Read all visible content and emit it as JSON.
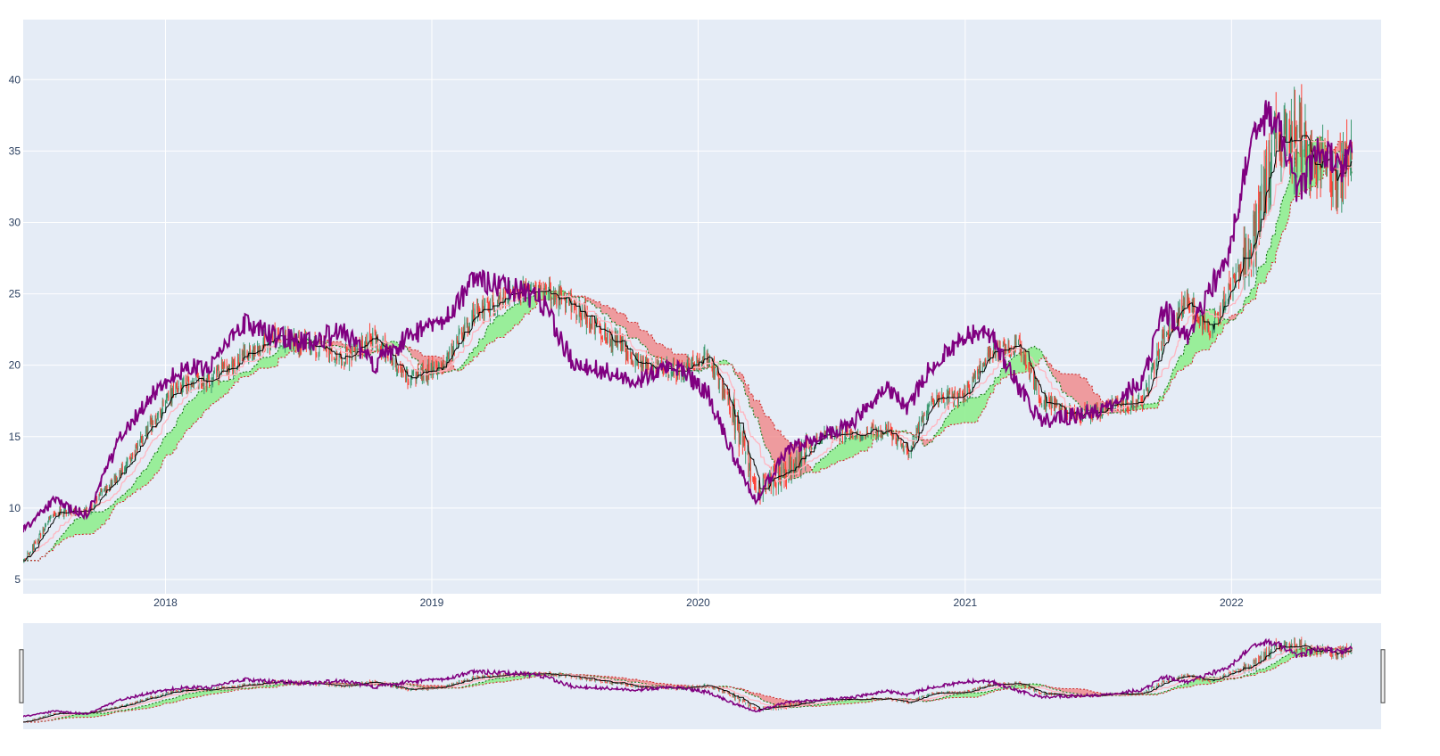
{
  "chart_data": {
    "type": "candlestick",
    "title": "",
    "xlabel": "",
    "ylabel": "",
    "x_range": [
      "2017-06-20",
      "2022-07-25"
    ],
    "ylim": [
      4,
      44.2
    ],
    "x_ticks": [
      "2018",
      "2019",
      "2020",
      "2021",
      "2022"
    ],
    "y_ticks": [
      5,
      10,
      15,
      20,
      25,
      30,
      35,
      40
    ],
    "grid": true,
    "legend": "none",
    "rangeslider": true,
    "price_anchors": [
      [
        "2017-06-20",
        6.2
      ],
      [
        "2017-08-01",
        9.6
      ],
      [
        "2017-09-15",
        9.8
      ],
      [
        "2017-11-01",
        12.5
      ],
      [
        "2017-12-15",
        16.0
      ],
      [
        "2018-01-15",
        18.5
      ],
      [
        "2018-03-01",
        19.0
      ],
      [
        "2018-04-15",
        20.5
      ],
      [
        "2018-06-01",
        22.0
      ],
      [
        "2018-07-15",
        21.5
      ],
      [
        "2018-09-01",
        20.5
      ],
      [
        "2018-10-15",
        22.0
      ],
      [
        "2018-12-01",
        19.0
      ],
      [
        "2019-01-15",
        20.0
      ],
      [
        "2019-03-01",
        23.5
      ],
      [
        "2019-04-15",
        25.0
      ],
      [
        "2019-06-01",
        25.5
      ],
      [
        "2019-07-15",
        24.0
      ],
      [
        "2019-09-01",
        22.0
      ],
      [
        "2019-10-15",
        20.0
      ],
      [
        "2019-12-01",
        19.5
      ],
      [
        "2020-01-15",
        20.5
      ],
      [
        "2020-02-15",
        17.0
      ],
      [
        "2020-03-20",
        11.5
      ],
      [
        "2020-05-01",
        12.5
      ],
      [
        "2020-06-15",
        15.0
      ],
      [
        "2020-08-01",
        15.2
      ],
      [
        "2020-09-15",
        15.5
      ],
      [
        "2020-10-15",
        14.0
      ],
      [
        "2020-11-15",
        17.5
      ],
      [
        "2021-01-01",
        18.0
      ],
      [
        "2021-02-01",
        20.5
      ],
      [
        "2021-03-15",
        21.5
      ],
      [
        "2021-04-15",
        17.5
      ],
      [
        "2021-06-01",
        16.5
      ],
      [
        "2021-07-15",
        17.0
      ],
      [
        "2021-09-01",
        17.5
      ],
      [
        "2021-10-01",
        22.0
      ],
      [
        "2021-11-01",
        24.5
      ],
      [
        "2021-12-01",
        22.5
      ],
      [
        "2022-01-01",
        25.5
      ],
      [
        "2022-02-01",
        29.0
      ],
      [
        "2022-03-01",
        35.5
      ],
      [
        "2022-04-01",
        36.0
      ],
      [
        "2022-05-01",
        33.5
      ],
      [
        "2022-06-01",
        33.0
      ],
      [
        "2022-06-15",
        36.5
      ]
    ],
    "purple_anchors": [
      [
        "2017-06-20",
        8.5
      ],
      [
        "2017-08-01",
        10.5
      ],
      [
        "2017-09-15",
        9.5
      ],
      [
        "2017-11-01",
        15.0
      ],
      [
        "2017-12-15",
        18.0
      ],
      [
        "2018-01-15",
        19.5
      ],
      [
        "2018-03-01",
        20.0
      ],
      [
        "2018-04-15",
        23.0
      ],
      [
        "2018-06-01",
        22.0
      ],
      [
        "2018-07-15",
        21.5
      ],
      [
        "2018-09-01",
        22.5
      ],
      [
        "2018-10-15",
        20.0
      ],
      [
        "2018-12-01",
        22.0
      ],
      [
        "2019-01-15",
        23.0
      ],
      [
        "2019-03-01",
        26.0
      ],
      [
        "2019-04-15",
        25.5
      ],
      [
        "2019-06-01",
        24.5
      ],
      [
        "2019-07-15",
        20.0
      ],
      [
        "2019-09-01",
        19.5
      ],
      [
        "2019-10-15",
        19.0
      ],
      [
        "2019-12-01",
        20.0
      ],
      [
        "2020-01-15",
        18.0
      ],
      [
        "2020-02-15",
        14.0
      ],
      [
        "2020-03-20",
        10.5
      ],
      [
        "2020-05-01",
        14.0
      ],
      [
        "2020-06-15",
        15.0
      ],
      [
        "2020-08-01",
        16.0
      ],
      [
        "2020-09-15",
        18.5
      ],
      [
        "2020-10-15",
        17.0
      ],
      [
        "2020-11-15",
        20.0
      ],
      [
        "2021-01-01",
        22.0
      ],
      [
        "2021-02-01",
        22.5
      ],
      [
        "2021-03-15",
        18.5
      ],
      [
        "2021-04-15",
        16.0
      ],
      [
        "2021-06-01",
        16.5
      ],
      [
        "2021-07-15",
        17.0
      ],
      [
        "2021-09-01",
        19.0
      ],
      [
        "2021-10-01",
        24.0
      ],
      [
        "2021-11-01",
        22.0
      ],
      [
        "2021-12-01",
        25.0
      ],
      [
        "2022-01-01",
        28.5
      ],
      [
        "2022-02-01",
        37.0
      ],
      [
        "2022-03-01",
        37.5
      ],
      [
        "2022-04-01",
        32.0
      ],
      [
        "2022-05-01",
        35.0
      ],
      [
        "2022-06-01",
        34.0
      ],
      [
        "2022-06-15",
        35.0
      ]
    ],
    "colors": {
      "background": "#ffffff",
      "plot_bg": "#e5ecf6",
      "grid": "#ffffff",
      "tick_text": "#2a3f5f",
      "increasing": "#3d9970",
      "decreasing": "#ff4136",
      "purple_line": "#800080",
      "black_line": "#000000",
      "pink_line": "#ffb6c1",
      "dotted_green": "#1a7a1a",
      "dotted_red": "#cc3333",
      "cloud_green": "rgba(144,238,144,0.9)",
      "cloud_red": "rgba(240,128,128,0.75)"
    }
  }
}
